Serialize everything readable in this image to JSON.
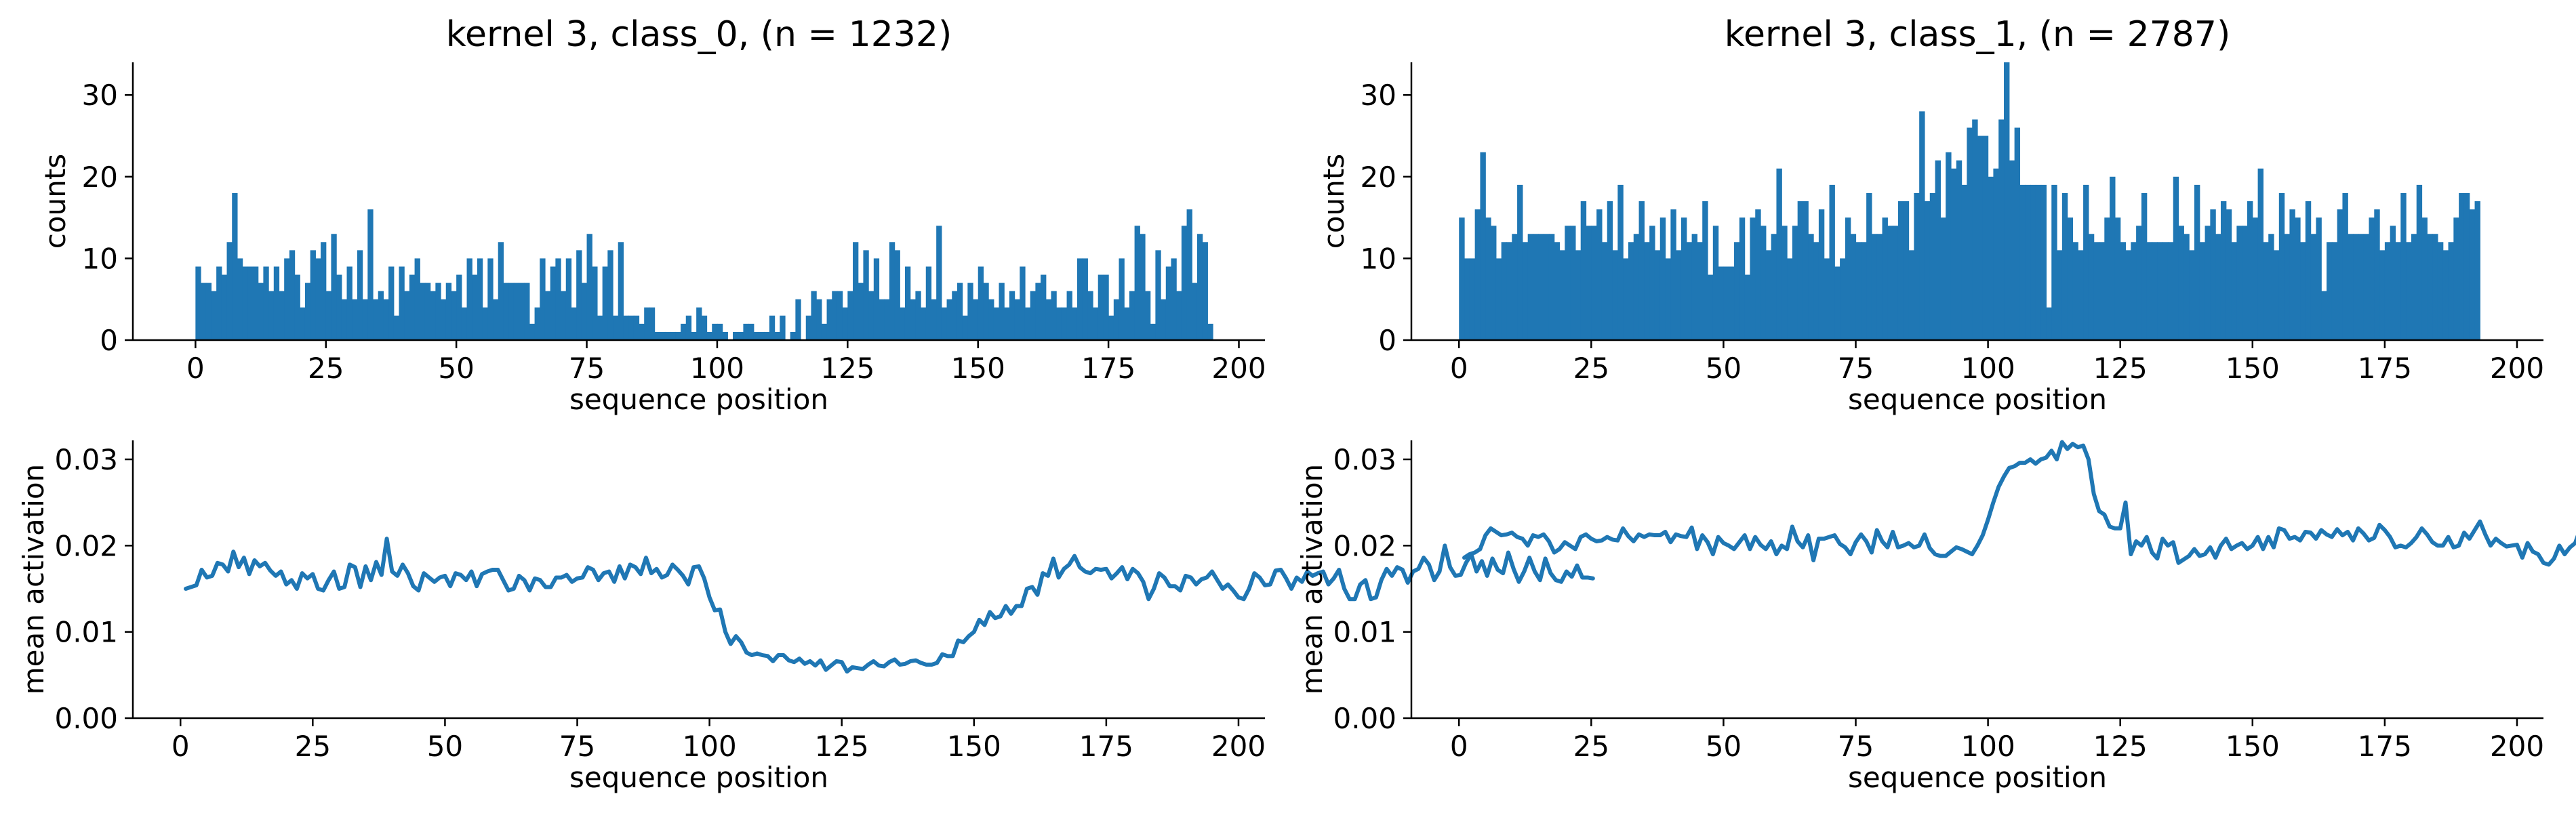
{
  "colors": {
    "series": "#1f77b4",
    "axis": "#000000",
    "background": "#ffffff"
  },
  "chart_data": [
    {
      "id": "hist_class0",
      "type": "bar",
      "title": "kernel 3, class_0, (n = 1232)",
      "xlabel": "sequence position",
      "ylabel": "counts",
      "xlim": [
        -12,
        205
      ],
      "ylim": [
        0,
        34
      ],
      "xticks": [
        0,
        25,
        50,
        75,
        100,
        125,
        150,
        175,
        200
      ],
      "yticks": [
        0,
        10,
        20,
        30
      ],
      "grid": false,
      "x_start": 0,
      "bin_width": 1,
      "values": [
        9,
        7,
        7,
        6,
        9,
        8,
        12,
        18,
        10,
        9,
        9,
        9,
        7,
        9,
        6,
        9,
        6,
        10,
        11,
        8,
        4,
        7,
        11,
        10,
        12,
        6,
        13,
        8,
        5,
        9,
        5,
        11,
        5,
        16,
        5,
        6,
        5,
        9,
        3,
        9,
        6,
        8,
        10,
        7,
        7,
        6,
        7,
        5,
        7,
        6,
        8,
        4,
        10,
        8,
        10,
        4,
        10,
        5,
        12,
        7,
        7,
        7,
        7,
        7,
        2,
        4,
        10,
        6,
        9,
        10,
        6,
        10,
        4,
        11,
        7,
        13,
        9,
        3,
        9,
        11,
        3,
        12,
        3,
        3,
        3,
        2,
        4,
        4,
        1,
        1,
        1,
        1,
        1,
        2,
        3,
        1,
        4,
        3,
        1,
        2,
        2,
        1,
        0,
        1,
        1,
        2,
        2,
        1,
        1,
        1,
        3,
        1,
        3,
        0,
        1,
        5,
        0,
        3,
        6,
        5,
        2,
        5,
        6,
        6,
        4,
        6,
        12,
        7,
        11,
        6,
        10,
        5,
        5,
        12,
        11,
        4,
        9,
        5,
        6,
        4,
        9,
        5,
        14,
        4,
        5,
        6,
        7,
        3,
        7,
        5,
        9,
        7,
        5,
        4,
        7,
        4,
        6,
        5,
        9,
        4,
        6,
        7,
        8,
        5,
        6,
        4,
        4,
        6,
        4,
        10,
        10,
        6,
        4,
        8,
        8,
        3,
        5,
        10,
        4,
        6,
        14,
        13,
        6,
        2,
        11,
        5,
        9,
        10,
        6,
        14,
        16,
        7,
        13,
        12,
        2
      ]
    },
    {
      "id": "hist_class1",
      "type": "bar",
      "title": "kernel 3, class_1, (n = 2787)",
      "xlabel": "sequence position",
      "ylabel": "counts",
      "xlim": [
        -9,
        205
      ],
      "ylim": [
        0,
        34
      ],
      "xticks": [
        0,
        25,
        50,
        75,
        100,
        125,
        150,
        175,
        200
      ],
      "yticks": [
        0,
        10,
        20,
        30
      ],
      "grid": false,
      "x_start": 0,
      "bin_width": 1,
      "values": [
        15,
        10,
        10,
        16,
        23,
        15,
        14,
        10,
        12,
        12,
        13,
        19,
        12,
        13,
        13,
        13,
        13,
        13,
        12,
        11,
        14,
        14,
        11,
        17,
        14,
        14,
        16,
        12,
        17,
        11,
        19,
        10,
        12,
        13,
        17,
        12,
        14,
        11,
        15,
        10,
        16,
        11,
        15,
        12,
        13,
        12,
        17,
        8,
        14,
        9,
        9,
        9,
        12,
        15,
        8,
        15,
        16,
        14,
        11,
        13,
        21,
        14,
        10,
        14,
        17,
        17,
        13,
        12,
        16,
        10,
        19,
        9,
        10,
        15,
        13,
        12,
        12,
        18,
        13,
        13,
        15,
        14,
        14,
        17,
        17,
        11,
        18,
        28,
        17,
        18,
        22,
        15,
        23,
        21,
        22,
        19,
        26,
        27,
        25,
        25,
        20,
        21,
        27,
        34,
        22,
        26,
        19,
        19,
        19,
        19,
        19,
        4,
        19,
        11,
        18,
        15,
        12,
        11,
        19,
        13,
        12,
        12,
        15,
        20,
        15,
        12,
        11,
        12,
        14,
        18,
        12,
        12,
        12,
        12,
        12,
        20,
        14,
        13,
        11,
        19,
        12,
        14,
        16,
        13,
        17,
        16,
        12,
        14,
        14,
        17,
        15,
        21,
        12,
        13,
        11,
        18,
        13,
        16,
        15,
        12,
        17,
        13,
        15,
        6,
        12,
        12,
        16,
        18,
        13,
        13,
        13,
        13,
        15,
        16,
        11,
        12,
        14,
        12,
        18,
        12,
        13,
        19,
        15,
        13,
        13,
        12,
        11,
        12,
        15,
        18,
        18,
        16,
        17
      ]
    },
    {
      "id": "line_class0",
      "type": "line",
      "title": "",
      "xlabel": "sequence position",
      "ylabel": "mean activation",
      "xlim": [
        -9,
        205
      ],
      "ylim": [
        0,
        0.0322
      ],
      "xticks": [
        0,
        25,
        50,
        75,
        100,
        125,
        150,
        175,
        200
      ],
      "yticks": [
        0.0,
        0.01,
        0.02,
        0.03
      ],
      "ytick_labels": [
        "0.00",
        "0.01",
        "0.02",
        "0.03"
      ],
      "grid": false,
      "x_start": 1,
      "x_step": 1,
      "values": [
        0.015,
        0.0152,
        0.0154,
        0.0172,
        0.0163,
        0.0165,
        0.018,
        0.0178,
        0.017,
        0.0193,
        0.0175,
        0.0186,
        0.0167,
        0.0183,
        0.0176,
        0.018,
        0.0171,
        0.0165,
        0.017,
        0.0155,
        0.016,
        0.015,
        0.0168,
        0.0162,
        0.0167,
        0.015,
        0.0148,
        0.016,
        0.017,
        0.015,
        0.0152,
        0.0178,
        0.0175,
        0.0152,
        0.0176,
        0.016,
        0.0181,
        0.0166,
        0.0208,
        0.017,
        0.0165,
        0.0178,
        0.0168,
        0.0153,
        0.0148,
        0.0168,
        0.0163,
        0.0158,
        0.0163,
        0.0165,
        0.0153,
        0.0168,
        0.0166,
        0.016,
        0.017,
        0.0153,
        0.0167,
        0.017,
        0.0172,
        0.0172,
        0.016,
        0.0148,
        0.015,
        0.0165,
        0.016,
        0.0148,
        0.0162,
        0.016,
        0.0152,
        0.0152,
        0.0163,
        0.0163,
        0.0166,
        0.0158,
        0.0162,
        0.0163,
        0.0175,
        0.0172,
        0.016,
        0.0168,
        0.017,
        0.0158,
        0.0176,
        0.0162,
        0.0178,
        0.0175,
        0.0167,
        0.0186,
        0.0168,
        0.0173,
        0.0163,
        0.0166,
        0.0178,
        0.0172,
        0.0165,
        0.0155,
        0.0175,
        0.0176,
        0.0162,
        0.014,
        0.0125,
        0.0126,
        0.01,
        0.0086,
        0.0095,
        0.0088,
        0.0076,
        0.0073,
        0.0075,
        0.0073,
        0.0072,
        0.0066,
        0.0073,
        0.0073,
        0.0067,
        0.0065,
        0.0069,
        0.0063,
        0.0066,
        0.0061,
        0.0067,
        0.0056,
        0.0061,
        0.0066,
        0.0065,
        0.0054,
        0.0059,
        0.0058,
        0.0057,
        0.0062,
        0.0066,
        0.0061,
        0.006,
        0.0065,
        0.0068,
        0.0062,
        0.0063,
        0.0066,
        0.0067,
        0.0064,
        0.0062,
        0.0062,
        0.0064,
        0.0074,
        0.0072,
        0.0072,
        0.009,
        0.0088,
        0.0095,
        0.01,
        0.0114,
        0.0108,
        0.0123,
        0.0116,
        0.0118,
        0.013,
        0.0121,
        0.013,
        0.013,
        0.015,
        0.0152,
        0.0143,
        0.0168,
        0.0165,
        0.0185,
        0.0163,
        0.0173,
        0.0178,
        0.0188,
        0.0175,
        0.017,
        0.0168,
        0.0173,
        0.0172,
        0.0173,
        0.0162,
        0.0168,
        0.0175,
        0.0161,
        0.0173,
        0.0168,
        0.0158,
        0.0138,
        0.015,
        0.0168,
        0.0163,
        0.0153,
        0.0153,
        0.0148,
        0.0165,
        0.0163,
        0.0155,
        0.0161,
        0.0163,
        0.017,
        0.016,
        0.015,
        0.0155,
        0.0148,
        0.014,
        0.0138,
        0.015,
        0.0168,
        0.0163,
        0.0154,
        0.0155,
        0.0171,
        0.0172,
        0.0162,
        0.015,
        0.0163,
        0.0158,
        0.017,
        0.0165,
        0.0168,
        0.017,
        0.0155,
        0.0162,
        0.0172,
        0.015,
        0.0138,
        0.0138,
        0.0155,
        0.016,
        0.0138,
        0.014,
        0.016,
        0.0173,
        0.0165,
        0.0175,
        0.0172,
        0.0157,
        0.017,
        0.0173,
        0.0186,
        0.0178,
        0.016,
        0.017,
        0.02,
        0.0175,
        0.0165,
        0.0166,
        0.018,
        0.019,
        0.017,
        0.0182,
        0.0165,
        0.0185,
        0.0172,
        0.0168,
        0.0192,
        0.0173,
        0.0158,
        0.017,
        0.0186,
        0.017,
        0.016,
        0.0185,
        0.0168,
        0.016,
        0.0158,
        0.017,
        0.0164,
        0.0177,
        0.0163,
        0.0163,
        0.0162
      ]
    },
    {
      "id": "line_class1",
      "type": "line",
      "title": "",
      "xlabel": "sequence position",
      "ylabel": "mean activation",
      "xlim": [
        -9,
        205
      ],
      "ylim": [
        0,
        0.0322
      ],
      "xticks": [
        0,
        25,
        50,
        75,
        100,
        125,
        150,
        175,
        200
      ],
      "yticks": [
        0.0,
        0.01,
        0.02,
        0.03
      ],
      "ytick_labels": [
        "0.00",
        "0.01",
        "0.02",
        "0.03"
      ],
      "grid": false,
      "x_start": 1,
      "x_step": 1,
      "values": [
        0.0186,
        0.019,
        0.0192,
        0.0196,
        0.0212,
        0.022,
        0.0216,
        0.0212,
        0.0213,
        0.0215,
        0.021,
        0.0208,
        0.02,
        0.0212,
        0.021,
        0.0213,
        0.0205,
        0.0192,
        0.0196,
        0.0204,
        0.02,
        0.0196,
        0.021,
        0.0213,
        0.0208,
        0.0205,
        0.0206,
        0.021,
        0.0207,
        0.0206,
        0.022,
        0.0211,
        0.0205,
        0.0213,
        0.021,
        0.0213,
        0.0212,
        0.0212,
        0.0216,
        0.0204,
        0.0213,
        0.0211,
        0.021,
        0.0221,
        0.0196,
        0.0212,
        0.0204,
        0.019,
        0.021,
        0.0203,
        0.02,
        0.0196,
        0.0204,
        0.0212,
        0.0196,
        0.021,
        0.0201,
        0.0196,
        0.0205,
        0.019,
        0.02,
        0.0196,
        0.0222,
        0.0205,
        0.0198,
        0.0212,
        0.0183,
        0.0208,
        0.0208,
        0.021,
        0.0212,
        0.0202,
        0.0198,
        0.019,
        0.0204,
        0.0213,
        0.0205,
        0.0192,
        0.0218,
        0.0205,
        0.0198,
        0.0216,
        0.0198,
        0.02,
        0.0203,
        0.0198,
        0.02,
        0.0213,
        0.0197,
        0.019,
        0.0188,
        0.0188,
        0.0193,
        0.0198,
        0.0196,
        0.0193,
        0.019,
        0.02,
        0.0212,
        0.023,
        0.025,
        0.0268,
        0.028,
        0.029,
        0.0292,
        0.0296,
        0.0296,
        0.03,
        0.0295,
        0.03,
        0.0302,
        0.031,
        0.03,
        0.032,
        0.0312,
        0.0318,
        0.0314,
        0.0316,
        0.03,
        0.026,
        0.024,
        0.0236,
        0.0222,
        0.022,
        0.022,
        0.025,
        0.019,
        0.0205,
        0.02,
        0.021,
        0.0192,
        0.0185,
        0.0208,
        0.02,
        0.0204,
        0.018,
        0.0184,
        0.0188,
        0.0196,
        0.0188,
        0.019,
        0.0198,
        0.0186,
        0.02,
        0.0208,
        0.0196,
        0.02,
        0.0203,
        0.0196,
        0.02,
        0.021,
        0.0196,
        0.021,
        0.0198,
        0.022,
        0.0218,
        0.0208,
        0.021,
        0.0206,
        0.0216,
        0.0215,
        0.0208,
        0.0218,
        0.0213,
        0.021,
        0.0219,
        0.0212,
        0.0216,
        0.0206,
        0.022,
        0.0214,
        0.0206,
        0.0209,
        0.0224,
        0.0218,
        0.021,
        0.0198,
        0.02,
        0.0198,
        0.0203,
        0.021,
        0.022,
        0.0213,
        0.0204,
        0.02,
        0.02,
        0.021,
        0.0198,
        0.02,
        0.0215,
        0.0208,
        0.0218,
        0.0228,
        0.0213,
        0.02,
        0.0208,
        0.0203,
        0.0199,
        0.02,
        0.0201,
        0.0186,
        0.0203,
        0.0193,
        0.019,
        0.018,
        0.0178,
        0.0185,
        0.02,
        0.019,
        0.0198,
        0.0203,
        0.022
      ]
    }
  ]
}
